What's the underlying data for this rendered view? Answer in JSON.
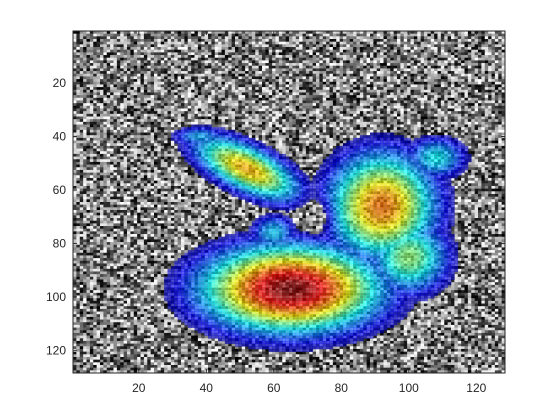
{
  "chart_data": {
    "type": "heatmap",
    "title": "",
    "xlabel": "",
    "ylabel": "",
    "xlim": [
      0.5,
      128.5
    ],
    "ylim": [
      0.5,
      128.5
    ],
    "y_reversed": true,
    "x_ticks": [
      20,
      40,
      60,
      80,
      100,
      120
    ],
    "x_tick_labels": [
      "20",
      "40",
      "60",
      "80",
      "100",
      "120"
    ],
    "y_ticks": [
      20,
      40,
      60,
      80,
      100,
      120
    ],
    "y_tick_labels": [
      "20",
      "40",
      "60",
      "80",
      "100",
      "120"
    ],
    "grid": false,
    "background": "grayscale random noise image (128×128)",
    "overlay": {
      "colormap": "jet",
      "blobs": [
        {
          "cx": 55,
          "cy": 53,
          "peak": 0.72
        },
        {
          "cx": 92,
          "cy": 64,
          "peak": 0.75
        },
        {
          "cx": 65,
          "cy": 98,
          "peak": 1.0
        }
      ]
    }
  }
}
